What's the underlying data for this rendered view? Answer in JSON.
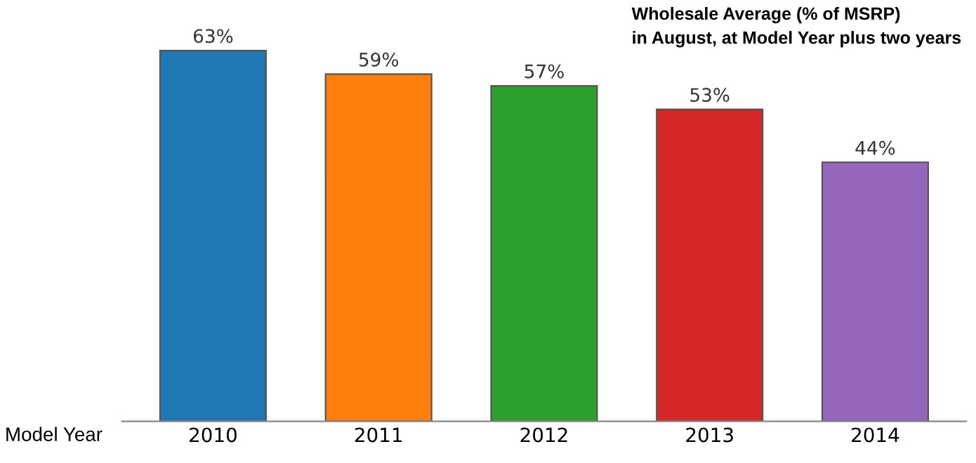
{
  "chart_data": {
    "type": "bar",
    "title": "Wholesale Average (% of MSRP)\nin August, at Model Year plus two years",
    "xlabel": "Model Year",
    "categories": [
      "2010",
      "2011",
      "2012",
      "2013",
      "2014"
    ],
    "values": [
      63,
      59,
      57,
      53,
      44
    ],
    "value_labels": [
      "63%",
      "59%",
      "57%",
      "53%",
      "44%"
    ],
    "colors": [
      "#1f77b4",
      "#ff7f0e",
      "#2ca02c",
      "#d62728",
      "#9467bd"
    ],
    "grid": false,
    "legend": false
  }
}
